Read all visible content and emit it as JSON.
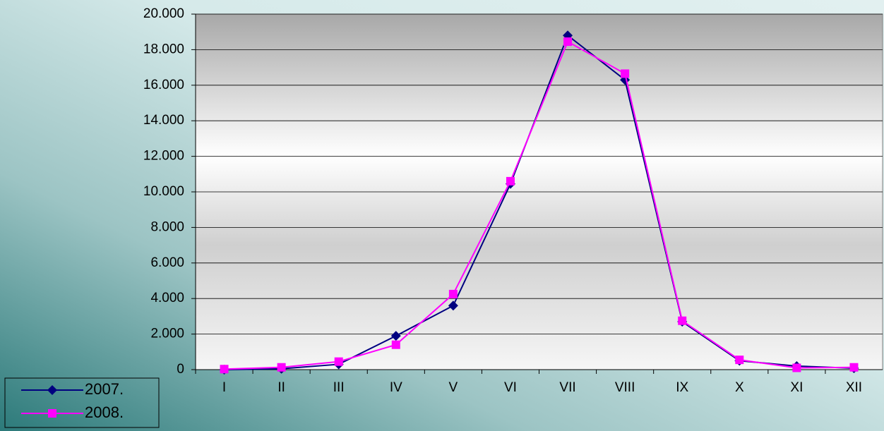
{
  "chart_data": {
    "type": "line",
    "categories": [
      "I",
      "II",
      "III",
      "IV",
      "V",
      "VI",
      "VII",
      "VIII",
      "IX",
      "X",
      "XI",
      "XII"
    ],
    "series": [
      {
        "name": "2007.",
        "color": "#000080",
        "marker": "diamond",
        "values": [
          0,
          50,
          300,
          1900,
          3600,
          10450,
          18800,
          16300,
          2700,
          500,
          200,
          80
        ]
      },
      {
        "name": "2008.",
        "color": "#ff00ff",
        "marker": "square",
        "values": [
          30,
          130,
          450,
          1400,
          4250,
          10600,
          18450,
          16650,
          2750,
          550,
          100,
          130
        ]
      }
    ],
    "ylim": [
      0,
      20000
    ],
    "yticks": [
      0,
      {
        "value": 2000,
        "label": "2.000"
      },
      {
        "value": 4000,
        "label": "4.000"
      },
      {
        "value": 6000,
        "label": "6.000"
      },
      {
        "value": 8000,
        "label": "8.000"
      },
      {
        "value": 10000,
        "label": "10.000"
      },
      {
        "value": 12000,
        "label": "12.000"
      },
      {
        "value": 14000,
        "label": "14.000"
      },
      {
        "value": 16000,
        "label": "16.000"
      },
      {
        "value": 18000,
        "label": "18.000"
      },
      {
        "value": 20000,
        "label": "20.000"
      }
    ],
    "grid": true,
    "legend": "bottom-left"
  }
}
